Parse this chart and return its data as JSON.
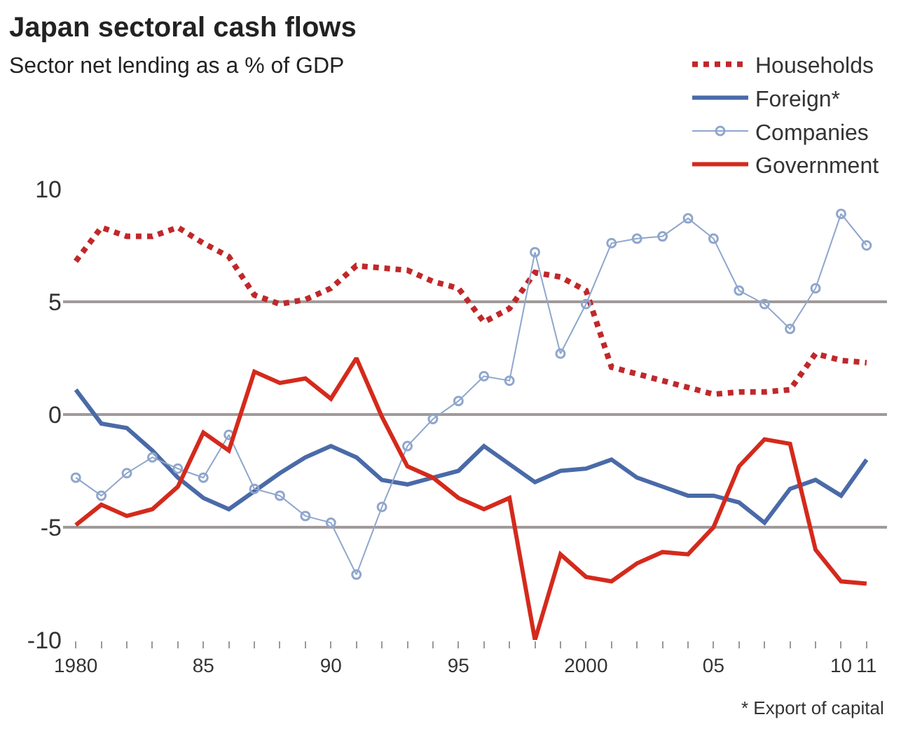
{
  "chart_data": {
    "type": "line",
    "title": "Japan sectoral cash flows",
    "subtitle": "Sector net lending as a % of GDP",
    "x": [
      1980,
      1981,
      1982,
      1983,
      1984,
      1985,
      1986,
      1987,
      1988,
      1989,
      1990,
      1991,
      1992,
      1993,
      1994,
      1995,
      1996,
      1997,
      1998,
      1999,
      2000,
      2001,
      2002,
      2003,
      2004,
      2005,
      2006,
      2007,
      2008,
      2009,
      2010,
      2011
    ],
    "series": [
      {
        "name": "Households",
        "color": "#c0282a",
        "line_style": "dotted",
        "values": [
          6.8,
          8.3,
          7.9,
          7.9,
          8.3,
          7.6,
          7.0,
          5.3,
          4.9,
          5.1,
          5.6,
          6.6,
          6.5,
          6.4,
          5.9,
          5.6,
          4.1,
          4.7,
          6.3,
          6.1,
          5.5,
          2.1,
          1.8,
          1.5,
          1.2,
          0.9,
          1.0,
          1.0,
          1.1,
          2.7,
          2.4,
          2.3
        ]
      },
      {
        "name": "Foreign*",
        "color": "#4a6aa8",
        "line_style": "solid",
        "values": [
          1.1,
          -0.4,
          -0.6,
          -1.6,
          -2.8,
          -3.7,
          -4.2,
          -3.4,
          -2.6,
          -1.9,
          -1.4,
          -1.9,
          -2.9,
          -3.1,
          -2.8,
          -2.5,
          -1.4,
          -2.2,
          -3.0,
          -2.5,
          -2.4,
          -2.0,
          -2.8,
          -3.2,
          -3.6,
          -3.6,
          -3.9,
          -4.8,
          -3.3,
          -2.9,
          -3.6,
          -2.0
        ]
      },
      {
        "name": "Companies",
        "color": "#8fa6cc",
        "line_style": "solid",
        "marker": "circle",
        "values": [
          -2.8,
          -3.6,
          -2.6,
          -1.9,
          -2.4,
          -2.8,
          -0.9,
          -3.3,
          -3.6,
          -4.5,
          -4.8,
          -7.1,
          -4.1,
          -1.4,
          -0.2,
          0.6,
          1.7,
          1.5,
          7.2,
          2.7,
          4.9,
          7.6,
          7.8,
          7.9,
          8.7,
          7.8,
          5.5,
          4.9,
          3.8,
          5.6,
          8.9,
          7.5
        ]
      },
      {
        "name": "Government",
        "color": "#d42a1c",
        "line_style": "solid",
        "values": [
          -4.9,
          -4.0,
          -4.5,
          -4.2,
          -3.2,
          -0.8,
          -1.6,
          1.9,
          1.4,
          1.6,
          0.7,
          2.5,
          -0.1,
          -2.3,
          -2.8,
          -3.7,
          -4.2,
          -3.7,
          -10.0,
          -6.2,
          -7.2,
          -7.4,
          -6.6,
          -6.1,
          -6.2,
          -5.0,
          -2.3,
          -1.1,
          -1.3,
          -6.0,
          -7.4,
          -7.5
        ]
      }
    ],
    "xlim": [
      1979.5,
      2011.8
    ],
    "xticks": [
      {
        "value": 1980,
        "label": "1980"
      },
      {
        "value": 1981,
        "label": null
      },
      {
        "value": 1982,
        "label": null
      },
      {
        "value": 1983,
        "label": null
      },
      {
        "value": 1984,
        "label": null
      },
      {
        "value": 1985,
        "label": "85"
      },
      {
        "value": 1986,
        "label": null
      },
      {
        "value": 1987,
        "label": null
      },
      {
        "value": 1988,
        "label": null
      },
      {
        "value": 1989,
        "label": null
      },
      {
        "value": 1990,
        "label": "90"
      },
      {
        "value": 1991,
        "label": null
      },
      {
        "value": 1992,
        "label": null
      },
      {
        "value": 1993,
        "label": null
      },
      {
        "value": 1994,
        "label": null
      },
      {
        "value": 1995,
        "label": "95"
      },
      {
        "value": 1996,
        "label": null
      },
      {
        "value": 1997,
        "label": null
      },
      {
        "value": 1998,
        "label": null
      },
      {
        "value": 1999,
        "label": null
      },
      {
        "value": 2000,
        "label": "2000"
      },
      {
        "value": 2001,
        "label": null
      },
      {
        "value": 2002,
        "label": null
      },
      {
        "value": 2003,
        "label": null
      },
      {
        "value": 2004,
        "label": null
      },
      {
        "value": 2005,
        "label": "05"
      },
      {
        "value": 2006,
        "label": null
      },
      {
        "value": 2007,
        "label": null
      },
      {
        "value": 2008,
        "label": null
      },
      {
        "value": 2009,
        "label": null
      },
      {
        "value": 2010,
        "label": "10"
      },
      {
        "value": 2011,
        "label": "11"
      }
    ],
    "ylim": [
      -10,
      10
    ],
    "yticks": [
      {
        "value": 10,
        "label": "10"
      },
      {
        "value": 5,
        "label": "5"
      },
      {
        "value": 0,
        "label": "0"
      },
      {
        "value": -5,
        "label": "-5"
      },
      {
        "value": -10,
        "label": "-10"
      }
    ],
    "grid": "y",
    "legend": "top right",
    "annotations": [
      "* Export of capital"
    ]
  }
}
